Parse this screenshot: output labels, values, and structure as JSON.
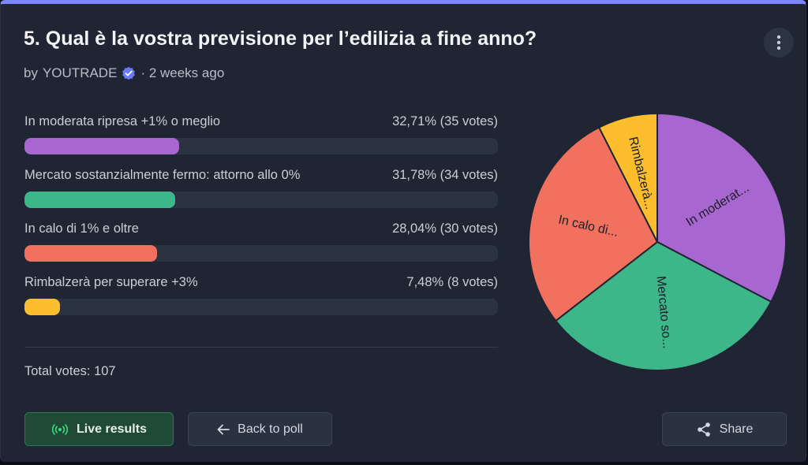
{
  "poll": {
    "title": "5. Qual è la vostra previsione per l’edilizia a fine anno?",
    "author_prefix": "by",
    "author": "YOUTRADE",
    "time_sep": "· 2 weeks ago",
    "options": [
      {
        "label": "In moderata ripresa +1% o meglio",
        "percent_text": "32,71%",
        "votes_text": "(35 votes)",
        "percent": 32.71,
        "color": "#a866d0",
        "pie_label": "In moderat..."
      },
      {
        "label": "Mercato sostanzialmente fermo: attorno allo 0%",
        "percent_text": "31,78%",
        "votes_text": "(34 votes)",
        "percent": 31.78,
        "color": "#3db68a",
        "pie_label": "Mercato so..."
      },
      {
        "label": "In calo di 1% e oltre",
        "percent_text": "28,04%",
        "votes_text": "(30 votes)",
        "percent": 28.04,
        "color": "#f2705e",
        "pie_label": "In calo di..."
      },
      {
        "label": "Rimbalzerà per superare +3%",
        "percent_text": "7,48%",
        "votes_text": "(8 votes)",
        "percent": 7.48,
        "color": "#fcbe2c",
        "pie_label": "Rimbalzerà..."
      }
    ],
    "total_label": "Total votes:",
    "total_votes": "107"
  },
  "buttons": {
    "live": "Live results",
    "back": "Back to poll",
    "share": "Share"
  },
  "icons": {
    "menu": "vertical-dots-icon",
    "verified": "verified-badge-icon",
    "live": "broadcast-icon",
    "back": "arrow-left-icon",
    "share": "share-icon"
  },
  "colors": {
    "accent": "#7b86ff",
    "verified": "#6a7cf5",
    "live_green": "#3ddc84"
  }
}
